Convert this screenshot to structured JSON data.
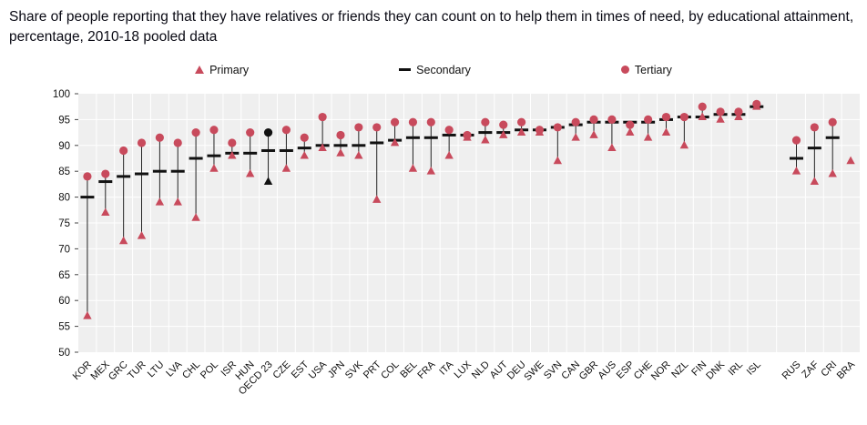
{
  "chart_data": {
    "type": "scatter",
    "title": "Share of people reporting that they have relatives or friends they can count on to help them in times of need, by educational attainment, percentage, 2010-18 pooled data",
    "legend": [
      "Primary",
      "Secondary",
      "Tertiary"
    ],
    "legend_markers": [
      "triangle",
      "dash",
      "circle"
    ],
    "ylim": [
      50,
      100
    ],
    "yticks": [
      50,
      55,
      60,
      65,
      70,
      75,
      80,
      85,
      90,
      95,
      100
    ],
    "categories": [
      "KOR",
      "MEX",
      "GRC",
      "TUR",
      "LTU",
      "LVA",
      "CHL",
      "POL",
      "ISR",
      "HUN",
      "OECD 23",
      "CZE",
      "EST",
      "USA",
      "JPN",
      "SVK",
      "PRT",
      "COL",
      "BEL",
      "FRA",
      "ITA",
      "LUX",
      "NLD",
      "AUT",
      "DEU",
      "SWE",
      "SVN",
      "CAN",
      "GBR",
      "AUS",
      "ESP",
      "CHE",
      "NOR",
      "NZL",
      "FIN",
      "DNK",
      "IRL",
      "ISL",
      "RUS",
      "ZAF",
      "CRI",
      "BRA"
    ],
    "series": [
      {
        "name": "Primary",
        "marker": "triangle",
        "values": [
          57,
          77,
          71.5,
          72.5,
          79,
          79,
          76,
          85.5,
          88,
          84.5,
          83,
          85.5,
          88,
          89.5,
          88.5,
          88,
          79.5,
          90.5,
          85.5,
          85,
          88,
          91.5,
          91,
          92,
          92.5,
          92.5,
          87,
          91.5,
          92,
          89.5,
          92.5,
          91.5,
          92.5,
          90,
          95.5,
          95,
          95.5,
          97.5,
          85,
          83,
          84.5,
          87
        ]
      },
      {
        "name": "Secondary",
        "marker": "dash",
        "values": [
          80,
          83,
          84,
          84.5,
          85,
          85,
          87.5,
          88,
          88.5,
          88.5,
          89,
          89,
          89.5,
          90,
          90,
          90,
          90.5,
          91,
          91.5,
          91.5,
          92,
          92,
          92.5,
          92.5,
          93,
          93,
          93.5,
          94,
          94.5,
          94.5,
          94.5,
          94.5,
          95,
          95.5,
          95.5,
          96,
          96,
          97.5,
          87.5,
          89.5,
          91.5,
          null
        ]
      },
      {
        "name": "Tertiary",
        "marker": "circle",
        "values": [
          84,
          84.5,
          89,
          90.5,
          91.5,
          90.5,
          92.5,
          93,
          90.5,
          92.5,
          92.5,
          93,
          91.5,
          95.5,
          92,
          93.5,
          93.5,
          94.5,
          94.5,
          94.5,
          93,
          92,
          94.5,
          94,
          94.5,
          93,
          93.5,
          94.5,
          95,
          95,
          94,
          95,
          95.5,
          95.5,
          97.5,
          96.5,
          96.5,
          98,
          91,
          93.5,
          94.5,
          null
        ]
      }
    ],
    "highlight_category": "OECD 23",
    "gap_before_category": "RUS",
    "grid": true,
    "legend_position": "top",
    "colors": {
      "marker": "#c84a5c",
      "secondary": "#111111",
      "highlight": "#111111",
      "plot_bg": "#efefef",
      "grid": "#ffffff",
      "connector": "#222222"
    }
  }
}
